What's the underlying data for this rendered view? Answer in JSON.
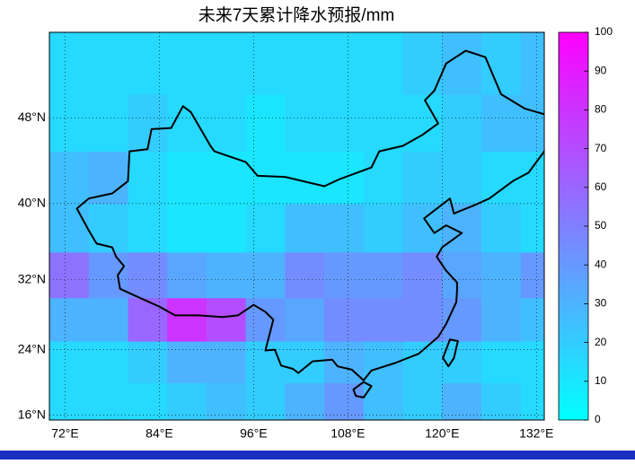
{
  "chart_data": {
    "type": "map",
    "title": "未来7天累计降水预报/mm",
    "projection": "mercator",
    "xlim": [
      70,
      133
    ],
    "ylim": [
      15.4,
      54.9
    ],
    "xticks": [
      {
        "value": 72,
        "label": "72°E"
      },
      {
        "value": 84,
        "label": "84°E"
      },
      {
        "value": 96,
        "label": "96°E"
      },
      {
        "value": 108,
        "label": "108°E"
      },
      {
        "value": 120,
        "label": "120°E"
      },
      {
        "value": 132,
        "label": "132°E"
      }
    ],
    "yticks": [
      {
        "value": 16,
        "label": "16°N"
      },
      {
        "value": 24,
        "label": "24°N"
      },
      {
        "value": 32,
        "label": "32°N"
      },
      {
        "value": 40,
        "label": "40°N"
      },
      {
        "value": 48,
        "label": "48°N"
      }
    ],
    "grid": true,
    "colormap": [
      "#00ffff",
      "#ff00ff"
    ],
    "colorbar": {
      "lim": [
        0,
        100
      ],
      "ticks": [
        0,
        10,
        20,
        30,
        40,
        50,
        60,
        70,
        80,
        90,
        100
      ]
    },
    "field": {
      "lon": [
        70,
        75,
        80,
        85,
        90,
        95,
        100,
        105,
        110,
        115,
        120,
        125,
        130,
        135
      ],
      "lat": [
        15,
        20,
        25,
        30,
        35,
        40,
        45,
        50,
        55
      ],
      "values": [
        [
          15,
          15,
          15,
          20,
          25,
          20,
          30,
          40,
          25,
          20,
          30,
          20,
          15
        ],
        [
          15,
          15,
          20,
          30,
          30,
          20,
          20,
          30,
          25,
          20,
          20,
          15,
          15
        ],
        [
          30,
          30,
          60,
          80,
          70,
          40,
          35,
          45,
          45,
          45,
          40,
          30,
          25
        ],
        [
          55,
          40,
          45,
          35,
          30,
          30,
          45,
          40,
          40,
          45,
          35,
          30,
          40
        ],
        [
          25,
          20,
          15,
          10,
          10,
          15,
          25,
          25,
          20,
          25,
          30,
          20,
          15
        ],
        [
          25,
          30,
          15,
          10,
          10,
          10,
          10,
          10,
          15,
          20,
          20,
          15,
          15
        ],
        [
          15,
          15,
          20,
          15,
          15,
          10,
          15,
          15,
          15,
          15,
          20,
          25,
          25
        ],
        [
          15,
          15,
          15,
          15,
          15,
          15,
          15,
          15,
          15,
          20,
          25,
          20,
          25
        ]
      ]
    }
  }
}
